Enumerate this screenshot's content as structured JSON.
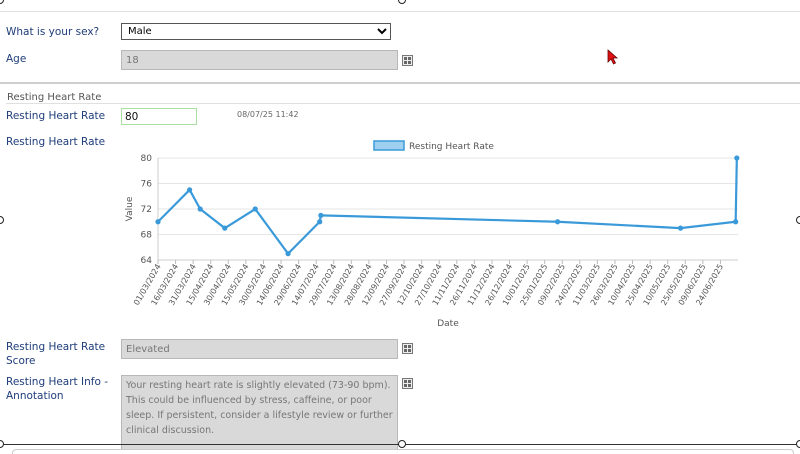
{
  "form": {
    "sex_label": "What is your sex?",
    "sex_value": "Male",
    "age_label": "Age",
    "age_value": "18",
    "section_title": "Resting Heart Rate",
    "hr_label": "Resting Heart Rate",
    "hr_value": "80",
    "hr_timestamp": "08/07/25 11:42",
    "chart_label": "Resting Heart Rate",
    "score_label": "Resting Heart Rate Score",
    "score_value": "Elevated",
    "info_label": "Resting Heart Info - Annotation",
    "info_value": "Your resting heart rate is slightly elevated (73-90 bpm). This could be influenced by stress, caffeine, or poor sleep. If persistent, consider a lifestyle review or further clinical discussion."
  },
  "colors": {
    "label": "#1f3d7a",
    "series": "#3a9ad9",
    "series_fill": "#9fd0f0"
  },
  "icons": {
    "calc": "calculator-icon",
    "cursor": "mouse-cursor-icon"
  },
  "chart_data": {
    "type": "line",
    "xlabel": "Date",
    "ylabel": "Value",
    "ylim": [
      64,
      80
    ],
    "yticks": [
      64,
      68,
      72,
      76,
      80
    ],
    "legend": "top-center",
    "grid": true,
    "xtick_labels": [
      "01/03/2024",
      "16/03/2024",
      "31/03/2024",
      "15/04/2024",
      "30/04/2024",
      "15/05/2024",
      "30/05/2024",
      "14/06/2024",
      "29/06/2024",
      "14/07/2024",
      "29/07/2024",
      "13/08/2024",
      "28/08/2024",
      "12/09/2024",
      "27/09/2024",
      "12/10/2024",
      "27/10/2024",
      "11/11/2024",
      "26/11/2024",
      "11/12/2024",
      "26/12/2024",
      "10/01/2025",
      "25/01/2025",
      "09/02/2025",
      "24/02/2025",
      "11/03/2025",
      "26/03/2025",
      "10/04/2025",
      "25/04/2025",
      "10/05/2025",
      "25/05/2025",
      "09/06/2025",
      "24/06/2025"
    ],
    "series": [
      {
        "name": "Resting Heart Rate",
        "points": [
          {
            "x": "2024-03-01",
            "y": 70
          },
          {
            "x": "2024-03-28",
            "y": 75
          },
          {
            "x": "2024-04-06",
            "y": 72
          },
          {
            "x": "2024-04-27",
            "y": 69
          },
          {
            "x": "2024-05-23",
            "y": 72
          },
          {
            "x": "2024-06-20",
            "y": 65
          },
          {
            "x": "2024-07-17",
            "y": 70
          },
          {
            "x": "2024-07-18",
            "y": 71
          },
          {
            "x": "2025-02-05",
            "y": 70
          },
          {
            "x": "2025-05-21",
            "y": 69
          },
          {
            "x": "2025-07-07",
            "y": 70
          },
          {
            "x": "2025-07-08",
            "y": 80
          }
        ]
      }
    ]
  }
}
